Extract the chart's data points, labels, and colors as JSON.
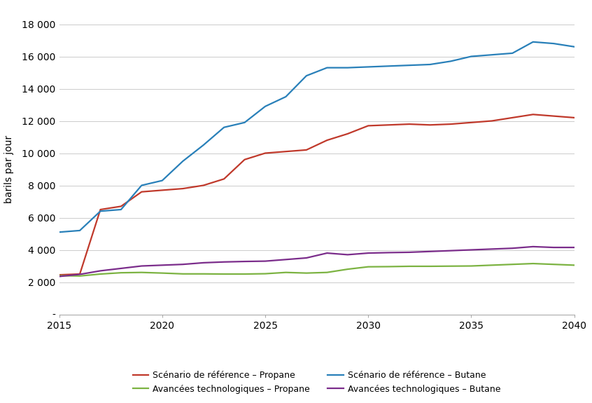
{
  "ylabel": "barils par jour",
  "xlim": [
    2015,
    2040
  ],
  "ylim": [
    0,
    18000
  ],
  "yticks": [
    0,
    2000,
    4000,
    6000,
    8000,
    10000,
    12000,
    14000,
    16000,
    18000
  ],
  "ytick_labels": [
    "-",
    "2 000",
    "4 000",
    "6 000",
    "8 000",
    "10 000",
    "12 000",
    "14 000",
    "16 000",
    "18 000"
  ],
  "xticks": [
    2015,
    2020,
    2025,
    2030,
    2035,
    2040
  ],
  "series": [
    {
      "label": "Scénario de référence – Propane",
      "color": "#c0392b",
      "x": [
        2015,
        2016,
        2017,
        2018,
        2019,
        2020,
        2021,
        2022,
        2023,
        2024,
        2025,
        2026,
        2027,
        2028,
        2029,
        2030,
        2031,
        2032,
        2033,
        2034,
        2035,
        2036,
        2037,
        2038,
        2039,
        2040
      ],
      "y": [
        2450,
        2500,
        6500,
        6700,
        7600,
        7700,
        7800,
        8000,
        8400,
        9600,
        10000,
        10100,
        10200,
        10800,
        11200,
        11700,
        11750,
        11800,
        11750,
        11800,
        11900,
        12000,
        12200,
        12400,
        12300,
        12200
      ]
    },
    {
      "label": "Scénario de référence – Butane",
      "color": "#2980b9",
      "x": [
        2015,
        2016,
        2017,
        2018,
        2019,
        2020,
        2021,
        2022,
        2023,
        2024,
        2025,
        2026,
        2027,
        2028,
        2029,
        2030,
        2031,
        2032,
        2033,
        2034,
        2035,
        2036,
        2037,
        2038,
        2039,
        2040
      ],
      "y": [
        5100,
        5200,
        6400,
        6500,
        8000,
        8300,
        9500,
        10500,
        11600,
        11900,
        12900,
        13500,
        14800,
        15300,
        15300,
        15350,
        15400,
        15450,
        15500,
        15700,
        16000,
        16100,
        16200,
        16900,
        16800,
        16600
      ]
    },
    {
      "label": "Avancées technologiques – Propane",
      "color": "#7cb342",
      "x": [
        2015,
        2016,
        2017,
        2018,
        2019,
        2020,
        2021,
        2022,
        2023,
        2024,
        2025,
        2026,
        2027,
        2028,
        2029,
        2030,
        2031,
        2032,
        2033,
        2034,
        2035,
        2036,
        2037,
        2038,
        2039,
        2040
      ],
      "y": [
        2400,
        2380,
        2500,
        2580,
        2600,
        2560,
        2510,
        2510,
        2500,
        2500,
        2520,
        2600,
        2560,
        2600,
        2800,
        2950,
        2960,
        2980,
        2980,
        2990,
        3000,
        3050,
        3100,
        3150,
        3100,
        3050
      ]
    },
    {
      "label": "Avancées technologiques – Butane",
      "color": "#7b2d8b",
      "x": [
        2015,
        2016,
        2017,
        2018,
        2019,
        2020,
        2021,
        2022,
        2023,
        2024,
        2025,
        2026,
        2027,
        2028,
        2029,
        2030,
        2031,
        2032,
        2033,
        2034,
        2035,
        2036,
        2037,
        2038,
        2039,
        2040
      ],
      "y": [
        2350,
        2480,
        2700,
        2850,
        3000,
        3050,
        3100,
        3200,
        3250,
        3280,
        3300,
        3400,
        3500,
        3800,
        3700,
        3800,
        3830,
        3850,
        3900,
        3950,
        4000,
        4050,
        4100,
        4200,
        4150,
        4150
      ]
    }
  ],
  "legend_order": [
    "Scénario de référence – Propane",
    "Avancées technologiques – Propane",
    "Scénario de référence – Butane",
    "Avancées technologiques – Butane"
  ],
  "background_color": "#ffffff",
  "grid_color": "#cccccc",
  "linewidth": 1.6
}
